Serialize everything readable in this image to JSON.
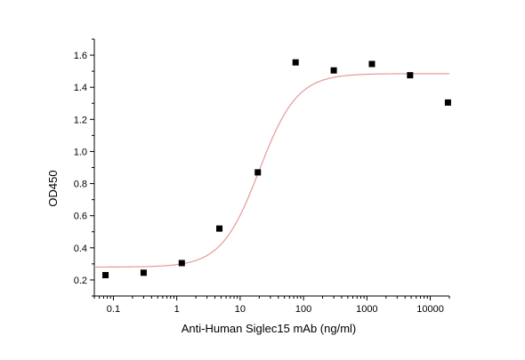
{
  "chart_data": {
    "type": "scatter",
    "title": "",
    "xlabel": "Anti-Human Siglec15 mAb (ng/ml)",
    "ylabel": "OD450",
    "x_scale": "log",
    "xlim": [
      0.05,
      20000
    ],
    "ylim": [
      0.1,
      1.7
    ],
    "x_ticks": [
      0.1,
      1,
      10,
      100,
      1000,
      10000
    ],
    "x_tick_labels": [
      "0.1",
      "1",
      "10",
      "100",
      "1000",
      "10000"
    ],
    "y_ticks": [
      0.2,
      0.4,
      0.6,
      0.8,
      1.0,
      1.2,
      1.4,
      1.6
    ],
    "y_tick_labels": [
      "0.2",
      "0.4",
      "0.6",
      "0.8",
      "1.0",
      "1.2",
      "1.4",
      "1.6"
    ],
    "grid": false,
    "legend": "none",
    "series": [
      {
        "marker": "square",
        "color": "#000000",
        "x": [
          0.075,
          0.3,
          1.2,
          4.7,
          19,
          75,
          300,
          1200,
          4800,
          19000
        ],
        "y": [
          0.23,
          0.245,
          0.305,
          0.52,
          0.87,
          1.555,
          1.505,
          1.545,
          1.475,
          1.305
        ]
      }
    ],
    "fit_curve": {
      "type": "4PL",
      "color": "#e89898",
      "bottom": 0.28,
      "top": 1.485,
      "ec50": 20,
      "hill": 1.45
    }
  }
}
